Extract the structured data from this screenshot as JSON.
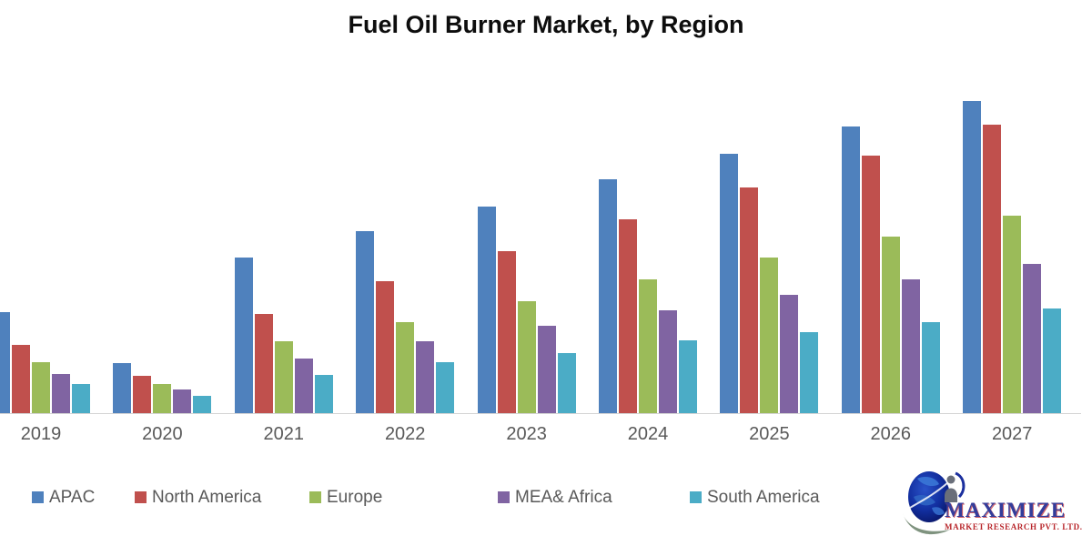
{
  "title": "Fuel Oil Burner Market, by Region",
  "chart_data": {
    "type": "bar",
    "title": "Fuel Oil Burner Market, by Region",
    "xlabel": "",
    "ylabel": "",
    "categories": [
      "2019",
      "2020",
      "2021",
      "2022",
      "2023",
      "2024",
      "2025",
      "2026",
      "2027"
    ],
    "series": [
      {
        "name": "APAC",
        "color": "#4F81BD",
        "values": [
          112,
          56,
          172,
          201,
          228,
          258,
          286,
          316,
          344
        ]
      },
      {
        "name": "North America",
        "color": "#C0504D",
        "values": [
          76,
          42,
          110,
          146,
          179,
          214,
          249,
          284,
          318
        ]
      },
      {
        "name": "Europe",
        "color": "#9BBB59",
        "values": [
          57,
          33,
          80,
          101,
          124,
          148,
          172,
          195,
          218
        ]
      },
      {
        "name": "MEA& Africa",
        "color": "#8064A2",
        "values": [
          44,
          27,
          61,
          80,
          97,
          114,
          131,
          148,
          165
        ]
      },
      {
        "name": "South America",
        "color": "#4BACC6",
        "values": [
          33,
          20,
          43,
          57,
          67,
          81,
          90,
          101,
          116
        ]
      }
    ],
    "y_axis_visible": false,
    "values_unit": "relative bar height in px (no y-axis scale shown in image)",
    "grid": false,
    "legend_position": "bottom",
    "first_group_partially_cropped_left": true
  },
  "logo": {
    "line1": "MAXIMIZE",
    "line2": "MARKET RESEARCH PVT. LTD."
  },
  "colors": {
    "axis_line": "#d4d4d4",
    "axis_text": "#595959",
    "title_text": "#0d0d0d",
    "logo_blue": "#343d9b",
    "logo_red": "#b8272c"
  }
}
